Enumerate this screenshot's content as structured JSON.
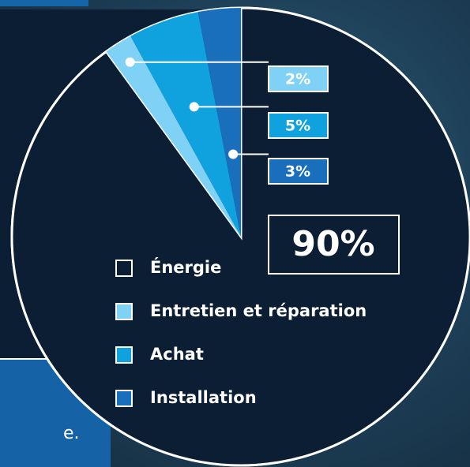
{
  "chart_data": {
    "type": "pie",
    "categories": [
      "Énergie",
      "Entretien et réparation",
      "Achat",
      "Installation"
    ],
    "values": [
      90,
      2,
      5,
      3
    ],
    "value_labels": [
      "90%",
      "2%",
      "5%",
      "3%"
    ],
    "colors": [
      "#0b1e33",
      "#7fd1f5",
      "#10a2df",
      "#1a6fbd"
    ],
    "footnote_fragment": "e."
  }
}
